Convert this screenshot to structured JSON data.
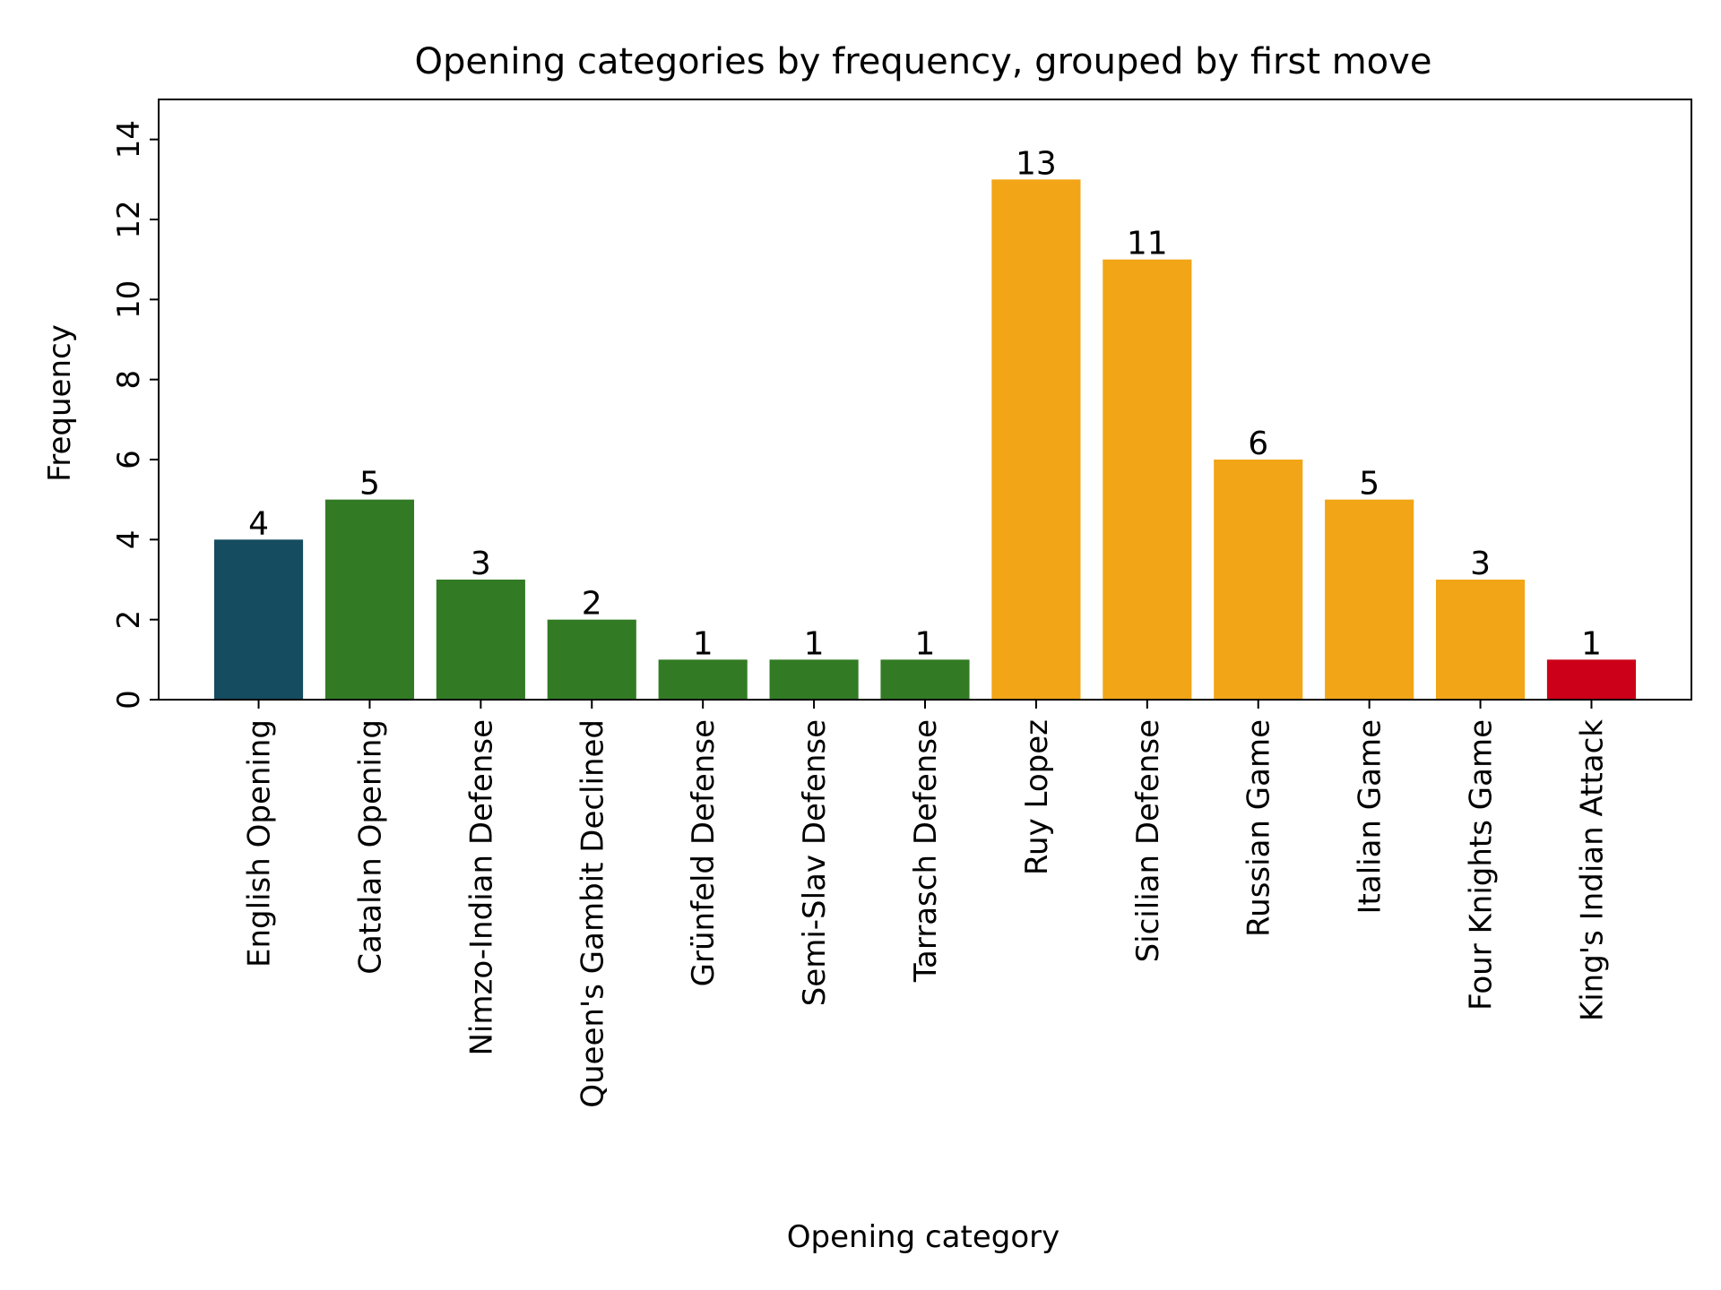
{
  "chart_data": {
    "type": "bar",
    "title": "Opening categories by frequency, grouped by first move",
    "xlabel": "Opening category",
    "ylabel": "Frequency",
    "ylim": [
      0,
      15
    ],
    "yticks": [
      0,
      2,
      4,
      6,
      8,
      10,
      12,
      14
    ],
    "categories": [
      "English Opening",
      "Catalan Opening",
      "Nimzo-Indian Defense",
      "Queen's Gambit Declined",
      "Grünfeld Defense",
      "Semi-Slav Defense",
      "Tarrasch Defense",
      "Ruy Lopez",
      "Sicilian Defense",
      "Russian Game",
      "Italian Game",
      "Four Knights Game",
      "King's Indian Attack"
    ],
    "values": [
      4,
      5,
      3,
      2,
      1,
      1,
      1,
      13,
      11,
      6,
      5,
      3,
      1
    ],
    "bar_colors": [
      "#154c60",
      "#327b24",
      "#327b24",
      "#327b24",
      "#327b24",
      "#327b24",
      "#327b24",
      "#f2a516",
      "#f2a516",
      "#f2a516",
      "#f2a516",
      "#f2a516",
      "#cc0018"
    ],
    "grid": false,
    "legend": "none"
  }
}
